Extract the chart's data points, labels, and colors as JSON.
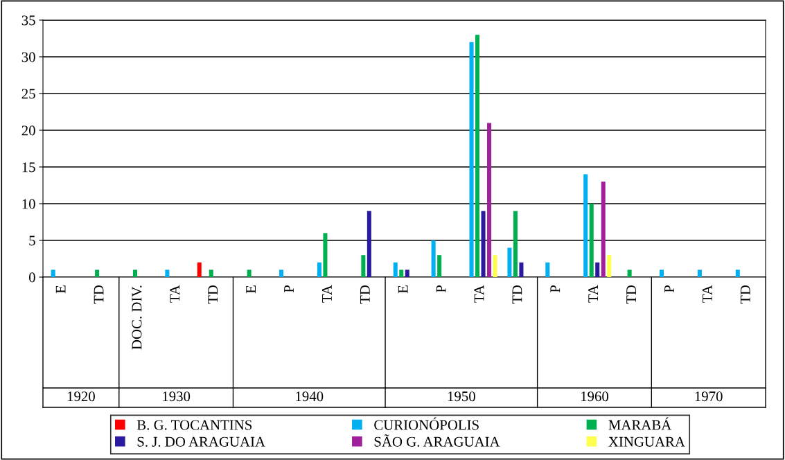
{
  "chart_data": {
    "type": "bar",
    "categories": [
      "E",
      "TD",
      "DOC. DIV.",
      "TA",
      "TD",
      "E",
      "P",
      "TA",
      "TD",
      "E",
      "P",
      "TA",
      "TD",
      "P",
      "TA",
      "TD",
      "P",
      "TA",
      "TD"
    ],
    "series": [
      {
        "name": "B. G. TOCANTINS",
        "color": "#ff0000",
        "values": [
          0,
          0,
          0,
          0,
          2,
          0,
          0,
          0,
          0,
          0,
          0,
          0,
          0,
          0,
          0,
          0,
          0,
          0,
          0
        ]
      },
      {
        "name": "CURIONÓPOLIS",
        "color": "#00b0f0",
        "values": [
          1,
          0,
          0,
          1,
          0,
          0,
          1,
          2,
          0,
          2,
          5,
          32,
          4,
          2,
          14,
          0,
          1,
          1,
          1
        ]
      },
      {
        "name": "MARABÁ",
        "color": "#00b050",
        "values": [
          0,
          1,
          1,
          0,
          1,
          1,
          0,
          6,
          3,
          1,
          3,
          33,
          9,
          0,
          10,
          1,
          0,
          0,
          0
        ]
      },
      {
        "name": "S. J. DO ARAGUAIA",
        "color": "#2a1a9e",
        "values": [
          0,
          0,
          0,
          0,
          0,
          0,
          0,
          0,
          9,
          1,
          0,
          9,
          2,
          0,
          2,
          0,
          0,
          0,
          0
        ]
      },
      {
        "name": "SÃO G. ARAGUAIA",
        "color": "#a0209c",
        "values": [
          0,
          0,
          0,
          0,
          0,
          0,
          0,
          0,
          0,
          0,
          0,
          21,
          0,
          0,
          13,
          0,
          0,
          0,
          0
        ]
      },
      {
        "name": "XINGUARA",
        "color": "#ffff4d",
        "values": [
          0,
          0,
          0,
          0,
          0,
          0,
          0,
          0,
          0,
          0,
          0,
          3,
          0,
          0,
          3,
          0,
          0,
          0,
          0
        ]
      }
    ],
    "annotations": [
      "1920",
      "1930",
      "1940",
      "1950",
      "1960",
      "1970"
    ],
    "ylim": [
      0,
      35
    ],
    "yticks": [
      0,
      5,
      10,
      15,
      20,
      25,
      30,
      35
    ],
    "grid": "y",
    "legend": "bottom"
  }
}
